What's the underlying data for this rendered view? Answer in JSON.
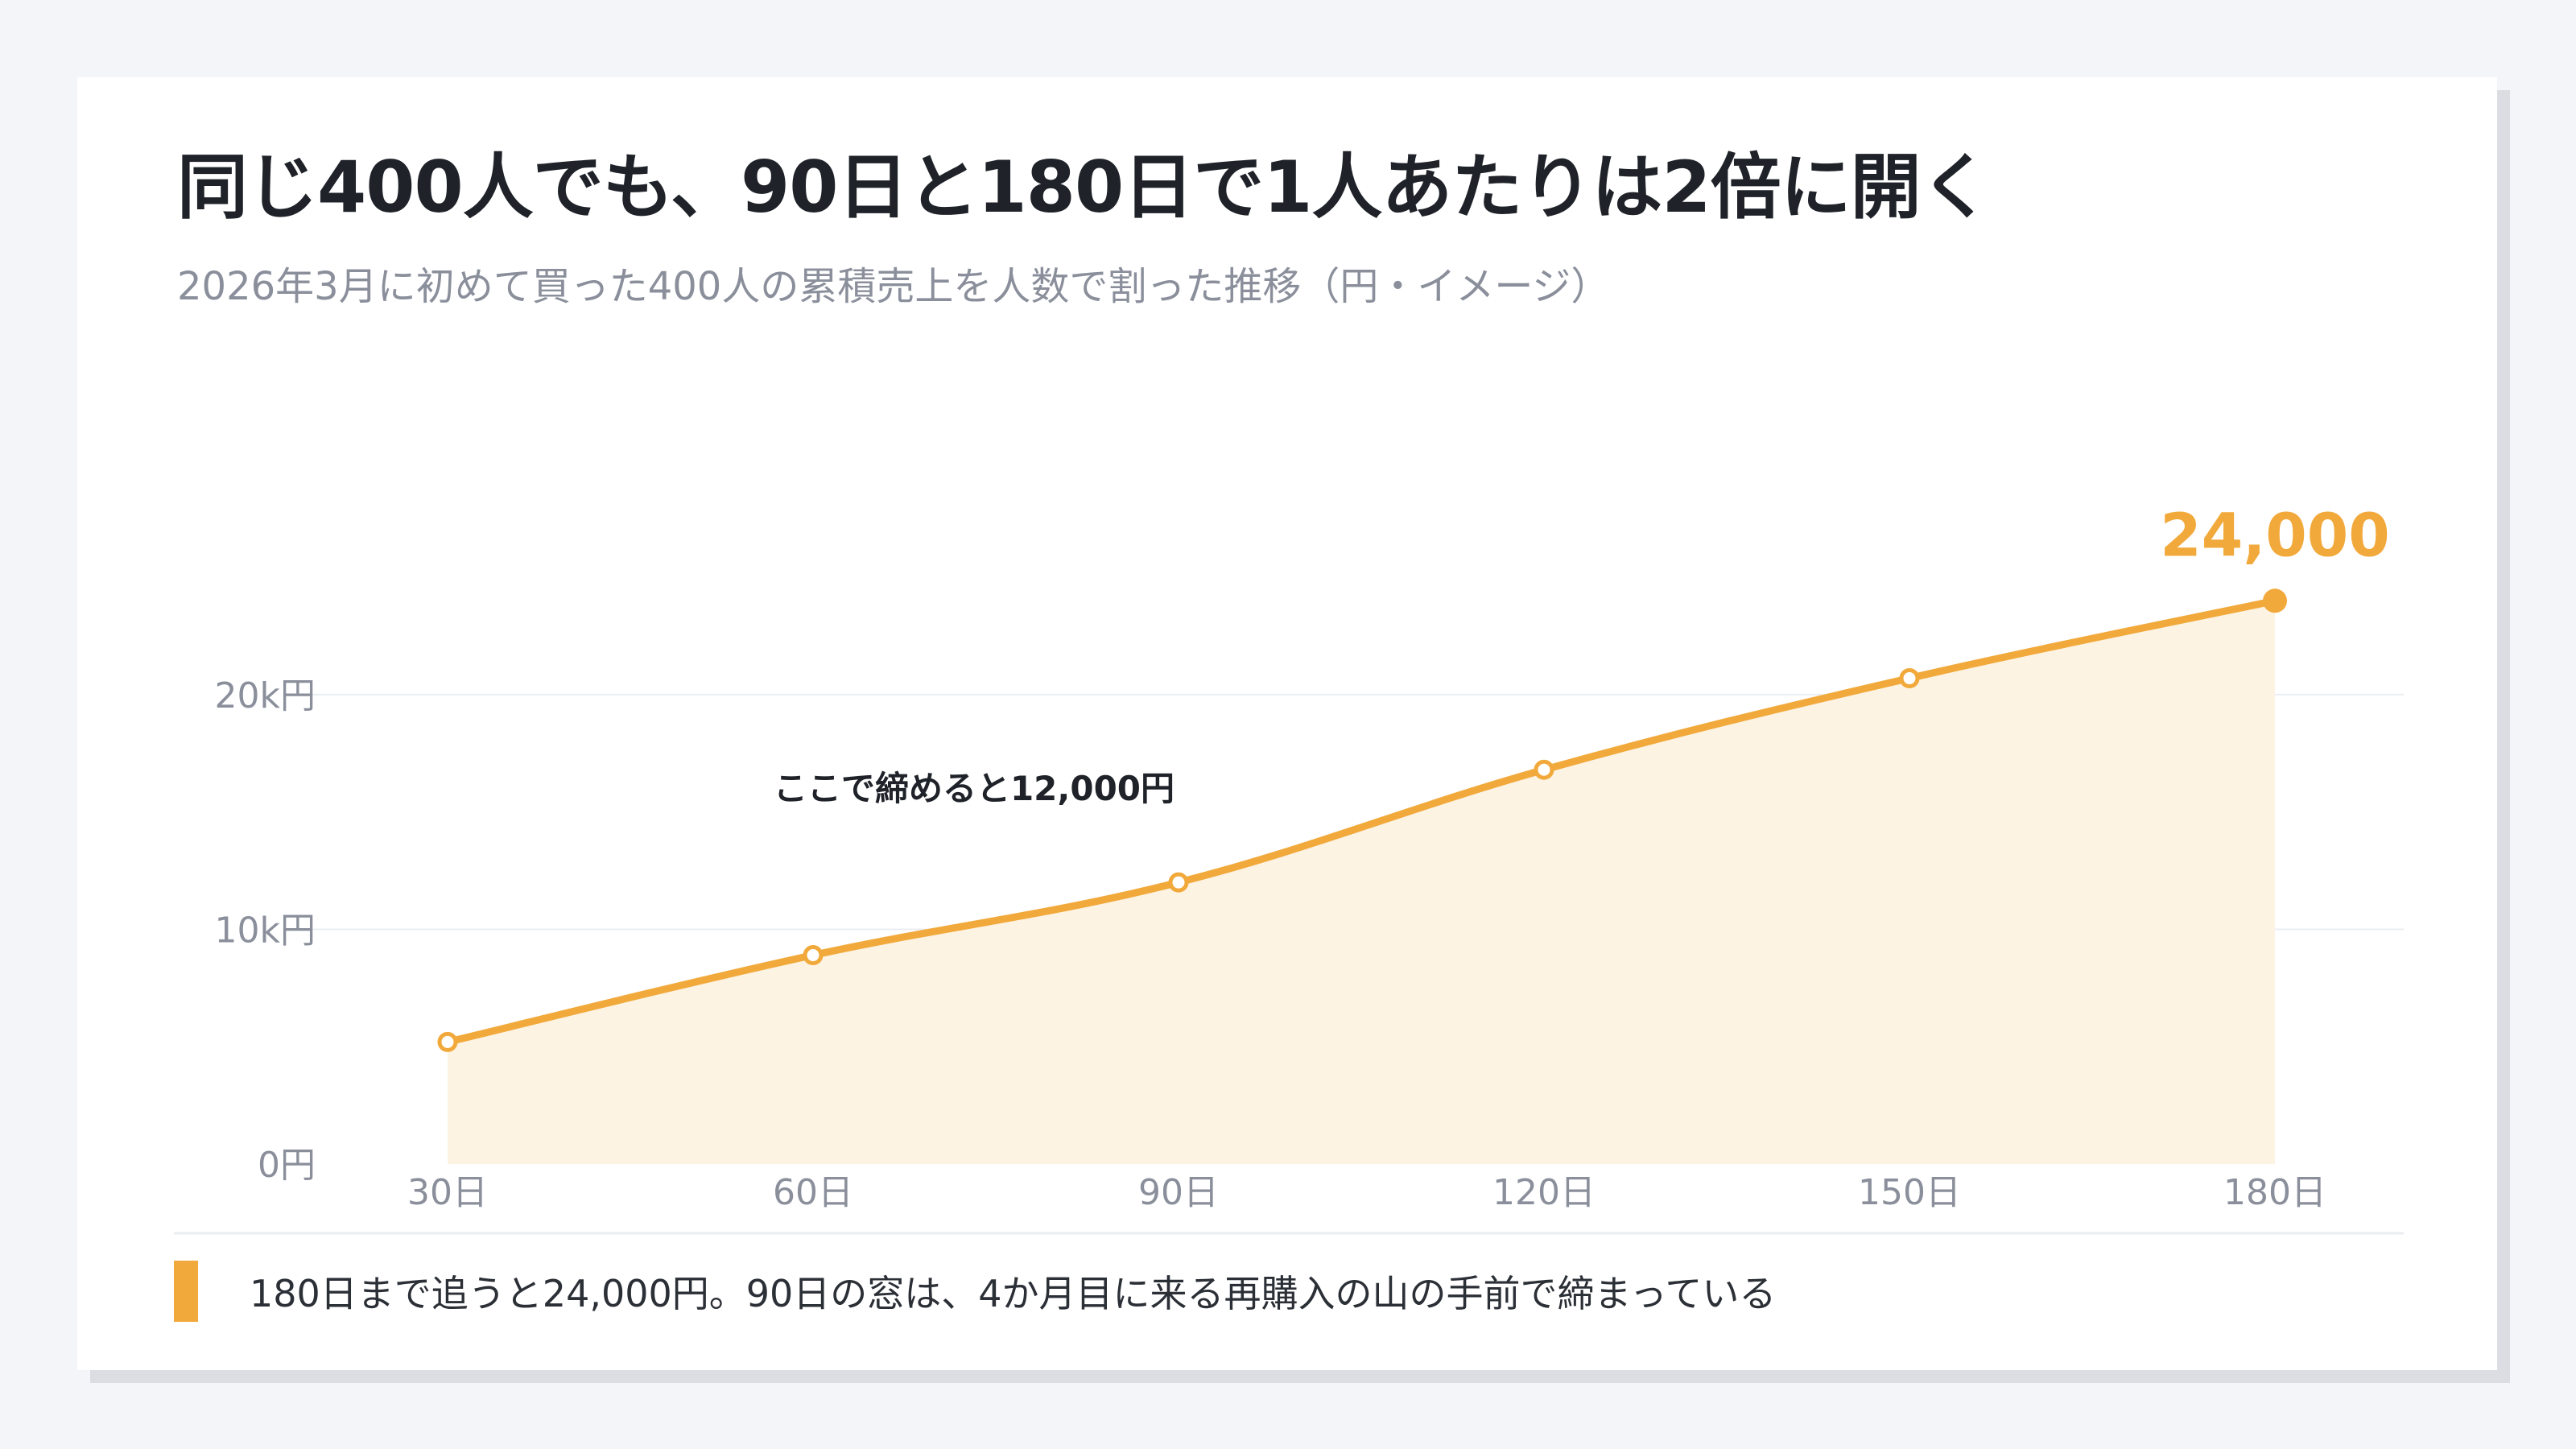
{
  "title": "同じ400人でも、90日と180日で1人あたりは2倍に開く",
  "subtitle": "2026年3月に初めて買った400人の累積売上を人数で割った推移（円・イメージ）",
  "note": "180日まで追うと24,000円。90日の窓は、4か月目に来る再購入の山の手前で締まっている",
  "colors": {
    "accent": "#f2a93b",
    "area": "#fdf3e3",
    "grid": "#ebedf2",
    "tick_text": "#8a8f9b",
    "annotation_text": "#1f2329"
  },
  "chart_data": {
    "type": "area",
    "x": [
      "30日",
      "60日",
      "90日",
      "120日",
      "150日",
      "180日"
    ],
    "y": [
      5200,
      8900,
      12000,
      16800,
      20700,
      24000
    ],
    "ylim": [
      0,
      26000
    ],
    "yticks": [
      {
        "value": 0,
        "label": "0円"
      },
      {
        "value": 10000,
        "label": "10k円"
      },
      {
        "value": 20000,
        "label": "20k円"
      }
    ],
    "grid": true,
    "legend": "none",
    "annotations": [
      {
        "at_x": "90日",
        "value": 12000,
        "text": "ここで締めると12,000円"
      },
      {
        "at_x": "180日",
        "value": 24000,
        "text": "24,000"
      }
    ]
  }
}
